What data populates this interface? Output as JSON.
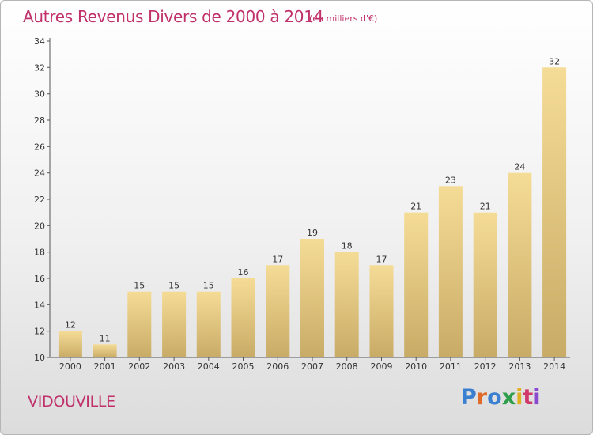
{
  "header": {
    "title": "Autres Revenus Divers de 2000 à 2014",
    "subtitle": "(en milliers d'€)"
  },
  "footer": {
    "place": "VIDOUVILLE",
    "logo": "Proxiti",
    "logo_colors": [
      "#3a7fd0",
      "#e06a2a",
      "#3a7fd0",
      "#2f9e4a",
      "#e0b020",
      "#d03a6a",
      "#8a4ad0"
    ]
  },
  "colors": {
    "title": "#c0306a",
    "bar_top": "#f5dc96",
    "bar_bottom": "#c8ab66",
    "axis": "#555555"
  },
  "chart_data": {
    "type": "bar",
    "title": "Autres Revenus Divers de 2000 à 2014",
    "subtitle": "(en milliers d'€)",
    "xlabel": "",
    "ylabel": "",
    "categories": [
      "2000",
      "2001",
      "2002",
      "2003",
      "2004",
      "2005",
      "2006",
      "2007",
      "2008",
      "2009",
      "2010",
      "2011",
      "2012",
      "2013",
      "2014"
    ],
    "values": [
      12,
      11,
      15,
      15,
      15,
      16,
      17,
      19,
      18,
      17,
      21,
      23,
      21,
      24,
      32
    ],
    "ylim": [
      10,
      34
    ],
    "yticks": [
      10,
      12,
      14,
      16,
      18,
      20,
      22,
      24,
      26,
      28,
      30,
      32,
      34
    ],
    "grid": false,
    "legend": "none"
  }
}
